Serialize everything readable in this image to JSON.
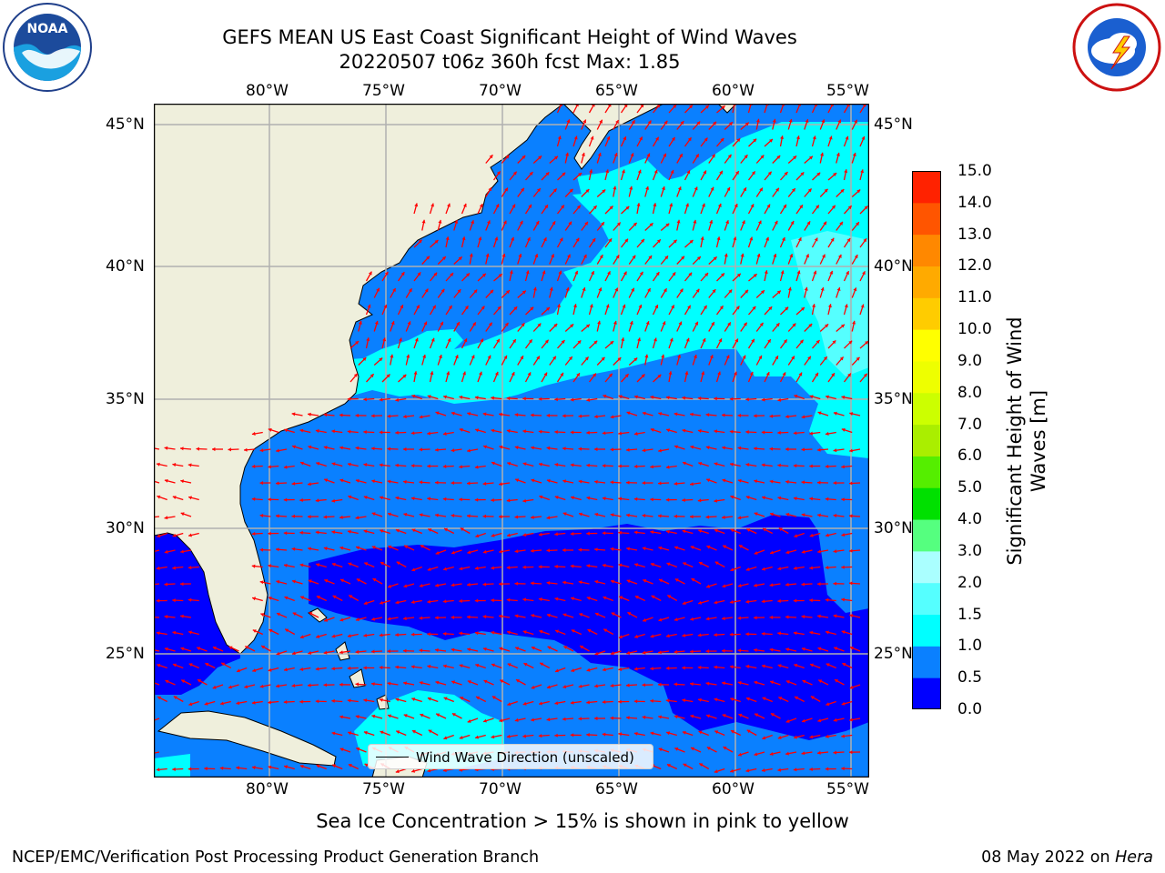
{
  "title": {
    "line1": "GEFS MEAN US East Coast Significant Height of Wind Waves",
    "line2": "20220507 t06z 360h fcst   Max: 1.85"
  },
  "logos": {
    "left": {
      "name": "NOAA",
      "ring_text": "NATIONAL OCEANIC AND ATMOSPHERIC ADMINISTRATION · U.S. DEPARTMENT OF COMMERCE"
    },
    "right": {
      "name": "NATIONAL WEATHER SERVICE"
    }
  },
  "axes": {
    "lon_ticks": [
      "80°W",
      "75°W",
      "70°W",
      "65°W",
      "60°W",
      "55°W"
    ],
    "lat_ticks": [
      "45°N",
      "40°N",
      "35°N",
      "30°N",
      "25°N"
    ]
  },
  "legend": {
    "label": "Wind Wave Direction (unscaled)"
  },
  "colorbar": {
    "title": "Significant Height of Wind Waves [m]",
    "tick_labels": [
      "0.0",
      "0.5",
      "1.0",
      "1.5",
      "2.0",
      "3.0",
      "4.0",
      "5.0",
      "6.0",
      "7.0",
      "8.0",
      "9.0",
      "10.0",
      "11.0",
      "12.0",
      "13.0",
      "14.0",
      "15.0"
    ],
    "colors": [
      "#0000ff",
      "#0a80ff",
      "#00ffff",
      "#55ffff",
      "#aaffff",
      "#55ff7f",
      "#00e000",
      "#55ee00",
      "#aaee00",
      "#ccff00",
      "#eeff00",
      "#ffff00",
      "#ffcc00",
      "#ffaa00",
      "#ff8800",
      "#ff5500",
      "#ff2200"
    ]
  },
  "map": {
    "land_color": "#efefdc",
    "arrow_color": "#ff0000",
    "grid_color": "#b0b0b0"
  },
  "subtitle": "Sea Ice Concentration > 15% is shown in pink to yellow",
  "footer": {
    "left": "NCEP/EMC/Verification Post Processing Product Generation Branch",
    "date": "08 May 2022 on ",
    "machine": "Hera"
  }
}
